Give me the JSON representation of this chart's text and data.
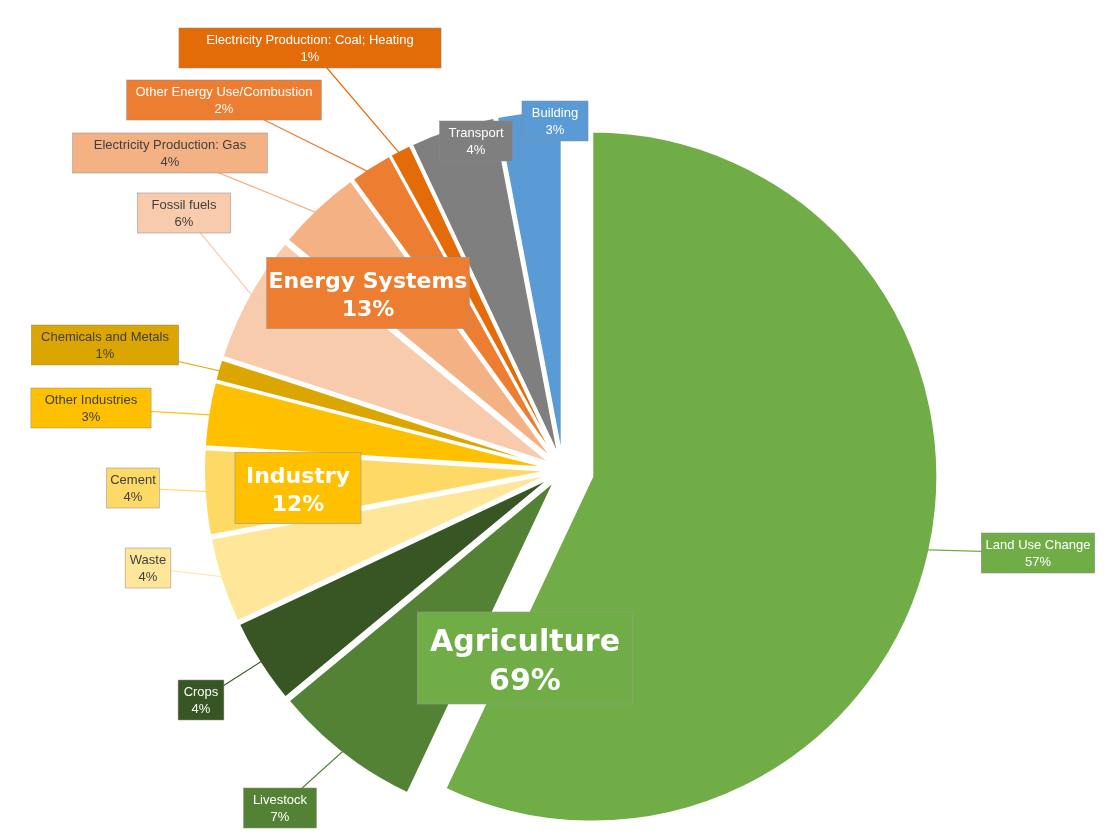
{
  "chart_data": {
    "type": "pie",
    "categories": [
      "Land Use Change",
      "Livestock",
      "Crops",
      "Waste",
      "Cement",
      "Other Industries",
      "Chemicals and Metals",
      "Fossil fuels",
      "Electricity Production: Gas",
      "Other Energy Use/Combustion",
      "Electricity Production: Coal; Heating",
      "Transport",
      "Building"
    ],
    "values": [
      57,
      7,
      4,
      4,
      4,
      3,
      1,
      6,
      4,
      2,
      1,
      4,
      3
    ],
    "colors": [
      "#70ad47",
      "#548235",
      "#375623",
      "#ffe699",
      "#ffd966",
      "#ffc000",
      "#dca600",
      "#f8cbad",
      "#f4b183",
      "#ed7d31",
      "#e36c09",
      "#7f7f7f",
      "#5b9bd5"
    ],
    "value_labels": [
      "57%",
      "7%",
      "4%",
      "4%",
      "4%",
      "3%",
      "1%",
      "6%",
      "4%",
      "2%",
      "1%",
      "4%",
      "3%"
    ],
    "annotations": [
      "Agriculture\n69%",
      "Industry\n12%",
      "Energy Systems\n13%"
    ],
    "legend": false
  }
}
